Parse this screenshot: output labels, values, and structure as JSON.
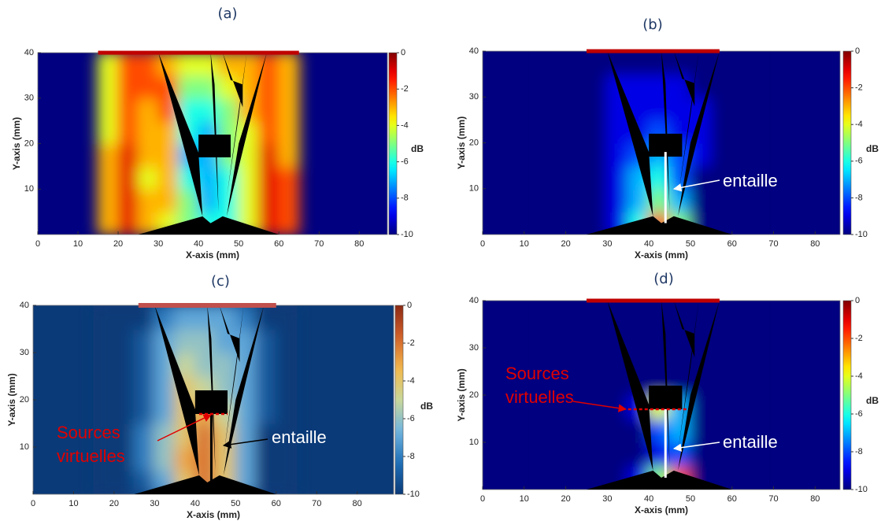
{
  "chart_data": [
    {
      "type": "heatmap",
      "title": "(a)",
      "xlabel": "X-axis (mm)",
      "ylabel": "Y-axis (mm)",
      "colorbar_label": "dB",
      "colormap": "jet",
      "xlim": [
        0,
        87
      ],
      "ylim": [
        0,
        40
      ],
      "xticks": [
        0,
        10,
        20,
        30,
        40,
        50,
        60,
        70,
        80
      ],
      "yticks": [
        10,
        20,
        30,
        40
      ],
      "clim": [
        -10,
        0
      ],
      "cticks": [
        0,
        -2,
        -4,
        -6,
        -8,
        -10
      ],
      "x": [
        17.5,
        22.5,
        27.5,
        32.5,
        37.5,
        42.5,
        47.5,
        52.5,
        57.5,
        62.5
      ],
      "y": [
        2.5,
        7.5,
        12.5,
        17.5,
        22.5,
        27.5,
        32.5,
        37.5
      ],
      "z": [
        [
          -3,
          -1,
          -3,
          -4,
          -5,
          -6,
          -6,
          -4,
          -1,
          -2
        ],
        [
          -3,
          -1,
          -3,
          -3,
          -5,
          -7,
          -6,
          -4,
          -1,
          -2
        ],
        [
          -3,
          -1,
          -4,
          -3,
          -6,
          -7,
          -6,
          -4,
          -1,
          -2
        ],
        [
          -3,
          -1,
          -3,
          -3,
          -7,
          -7,
          -5,
          -4,
          -1,
          -3
        ],
        [
          -4,
          -2,
          -3,
          -3,
          -6,
          -7,
          -5,
          -4,
          -2,
          -3
        ],
        [
          -4,
          -2,
          -3,
          -2,
          -6,
          -6,
          -5,
          -3,
          -2,
          -3
        ],
        [
          -4,
          -2,
          -2,
          -2,
          -5,
          -5,
          -4,
          -3,
          -2,
          -3
        ],
        [
          -4,
          -2,
          -2,
          -3,
          -4,
          -4,
          -3,
          -3,
          -2,
          -3
        ]
      ]
    },
    {
      "type": "heatmap",
      "title": "(b)",
      "xlabel": "X-axis (mm)",
      "ylabel": "Y-axis (mm)",
      "colorbar_label": "dB",
      "colormap": "jet",
      "xlim": [
        0,
        86
      ],
      "ylim": [
        0,
        40
      ],
      "xticks": [
        0,
        10,
        20,
        30,
        40,
        50,
        60,
        70,
        80
      ],
      "yticks": [
        10,
        20,
        30,
        40
      ],
      "clim": [
        -10,
        0
      ],
      "cticks": [
        0,
        -2,
        -4,
        -6,
        -8,
        -10
      ],
      "x": [
        17.5,
        22.5,
        27.5,
        32.5,
        37.5,
        42.5,
        47.5,
        52.5,
        57.5,
        62.5
      ],
      "y": [
        2.5,
        7.5,
        12.5,
        17.5,
        22.5,
        27.5,
        32.5,
        37.5
      ],
      "z": [
        [
          -10,
          -10,
          -10,
          -9,
          -6,
          -2,
          -5,
          -10,
          -10,
          -10
        ],
        [
          -10,
          -10,
          -10,
          -9,
          -7,
          -5,
          -7,
          -10,
          -10,
          -10
        ],
        [
          -10,
          -10,
          -10,
          -9,
          -7,
          -6,
          -8,
          -10,
          -10,
          -10
        ],
        [
          -10,
          -10,
          -10,
          -9,
          -8,
          -7,
          -8,
          -9,
          -10,
          -10
        ],
        [
          -10,
          -10,
          -10,
          -9,
          -9,
          -8,
          -9,
          -9,
          -10,
          -10
        ],
        [
          -10,
          -10,
          -10,
          -9,
          -9,
          -9,
          -9,
          -9,
          -10,
          -10
        ],
        [
          -10,
          -10,
          -10,
          -9,
          -9,
          -9,
          -9,
          -10,
          -10,
          -10
        ],
        [
          -10,
          -10,
          -10,
          -10,
          -10,
          -10,
          -10,
          -10,
          -10,
          -10
        ]
      ],
      "annotations": [
        "entaille"
      ]
    },
    {
      "type": "heatmap",
      "title": "(c)",
      "xlabel": "X-axis (mm)",
      "ylabel": "Y-axis (mm)",
      "colorbar_label": "dB",
      "colormap": "warm",
      "xlim": [
        0,
        89
      ],
      "ylim": [
        0,
        40
      ],
      "xticks": [
        0,
        10,
        20,
        30,
        40,
        50,
        60,
        70,
        80
      ],
      "yticks": [
        10,
        20,
        30,
        40
      ],
      "clim": [
        -10,
        0
      ],
      "cticks": [
        0,
        -2,
        -4,
        -6,
        -8,
        -10
      ],
      "x": [
        17.5,
        22.5,
        27.5,
        32.5,
        37.5,
        42.5,
        47.5,
        52.5,
        57.5,
        62.5
      ],
      "y": [
        2.5,
        7.5,
        12.5,
        17.5,
        22.5,
        27.5,
        32.5,
        37.5
      ],
      "z": [
        [
          -10,
          -10,
          -9,
          -7,
          -4,
          -2,
          -4,
          -7,
          -10,
          -10
        ],
        [
          -10,
          -10,
          -8,
          -6,
          -3,
          -2,
          -4,
          -7,
          -10,
          -10
        ],
        [
          -10,
          -10,
          -8,
          -6,
          -4,
          -2,
          -4,
          -7,
          -10,
          -10
        ],
        [
          -10,
          -10,
          -9,
          -7,
          -4,
          -3,
          -5,
          -7,
          -9,
          -10
        ],
        [
          -10,
          -10,
          -9,
          -7,
          -4,
          -5,
          -6,
          -7,
          -9,
          -10
        ],
        [
          -10,
          -10,
          -9,
          -7,
          -5,
          -6,
          -6,
          -7,
          -9,
          -10
        ],
        [
          -10,
          -10,
          -9,
          -7,
          -6,
          -6,
          -7,
          -7,
          -9,
          -10
        ],
        [
          -10,
          -10,
          -10,
          -8,
          -7,
          -7,
          -7,
          -8,
          -10,
          -10
        ]
      ],
      "annotations": [
        "Sources",
        "virtuelles",
        "entaille"
      ]
    },
    {
      "type": "heatmap",
      "title": "(d)",
      "xlabel": "X-axis (mm)",
      "ylabel": "Y-axis (mm)",
      "colorbar_label": "dB",
      "colormap": "jet",
      "xlim": [
        0,
        86
      ],
      "ylim": [
        0,
        40
      ],
      "xticks": [
        0,
        10,
        20,
        30,
        40,
        50,
        60,
        70,
        80
      ],
      "yticks": [
        10,
        20,
        30,
        40
      ],
      "clim": [
        -10,
        0
      ],
      "cticks": [
        0,
        -2,
        -4,
        -6,
        -8,
        -10
      ],
      "x": [
        17.5,
        22.5,
        27.5,
        32.5,
        37.5,
        42.5,
        47.5,
        52.5,
        57.5,
        62.5
      ],
      "y": [
        2.5,
        7.5,
        12.5,
        17.5,
        22.5,
        27.5,
        32.5,
        37.5
      ],
      "z": [
        [
          -10,
          -10,
          -10,
          -10,
          -9,
          -5,
          -2,
          -10,
          -10,
          -10
        ],
        [
          -10,
          -10,
          -10,
          -10,
          -10,
          -9,
          -8,
          -10,
          -10,
          -10
        ],
        [
          -10,
          -10,
          -10,
          -10,
          -10,
          -8,
          -7,
          -10,
          -10,
          -10
        ],
        [
          -10,
          -10,
          -10,
          -10,
          -9,
          -4,
          -7,
          -10,
          -10,
          -10
        ],
        [
          -10,
          -10,
          -10,
          -10,
          -10,
          -10,
          -10,
          -10,
          -10,
          -10
        ],
        [
          -10,
          -10,
          -10,
          -10,
          -10,
          -10,
          -10,
          -10,
          -10,
          -10
        ],
        [
          -10,
          -10,
          -10,
          -10,
          -10,
          -10,
          -10,
          -10,
          -10,
          -10
        ],
        [
          -10,
          -10,
          -10,
          -10,
          -10,
          -10,
          -10,
          -10,
          -10,
          -10
        ]
      ],
      "annotations": [
        "Sources",
        "virtuelles",
        "entaille"
      ]
    }
  ]
}
